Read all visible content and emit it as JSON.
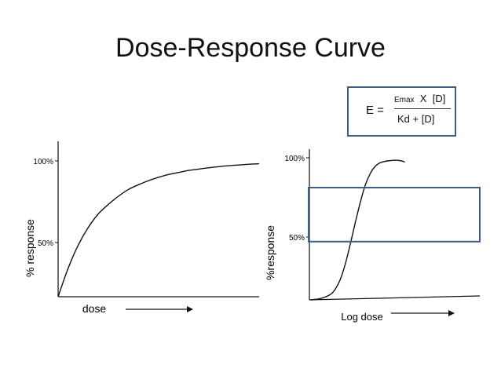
{
  "title": "Dose-Response Curve",
  "formula": {
    "lhs": "E =",
    "emax": "Emax",
    "times": "X",
    "dose": "[D]",
    "denominator": "Kd + [D]"
  },
  "colors": {
    "curve": "#111111",
    "axis": "#111111",
    "highlight": "#3a5f8a"
  },
  "chart_data": [
    {
      "type": "line",
      "series": [
        {
          "x": [
            0,
            0.05,
            0.1,
            0.15,
            0.2,
            0.25,
            0.3,
            0.35,
            0.4,
            0.45,
            0.5,
            0.55,
            0.6,
            0.65,
            0.7,
            0.75,
            0.8,
            0.85,
            0.9,
            0.95,
            1.0
          ],
          "y": [
            0,
            21,
            38,
            51,
            61,
            68,
            74,
            79,
            82.5,
            85.5,
            88,
            90,
            91.5,
            93,
            94,
            95,
            95.8,
            96.5,
            97,
            97.6,
            98
          ]
        }
      ],
      "xlabel": "dose",
      "ylabel": "% response",
      "yticks": [
        {
          "label": "50%",
          "value": 50
        },
        {
          "label": "100%",
          "value": 100
        }
      ],
      "xlim": [
        0,
        1
      ],
      "ylim": [
        0,
        100
      ]
    },
    {
      "type": "line",
      "series": [
        {
          "x": [
            0,
            0.1,
            0.2,
            0.25,
            0.3,
            0.35,
            0.4,
            0.45,
            0.5,
            0.55,
            0.6,
            0.65,
            0.7,
            0.75,
            0.8,
            0.85,
            0.9,
            0.95
          ],
          "y": [
            0,
            1,
            4,
            8,
            15,
            26,
            40,
            55,
            69,
            81,
            89,
            94,
            96.5,
            97.5,
            98,
            98.3,
            98,
            97
          ]
        }
      ],
      "xlabel": "Log dose",
      "ylabel": "%response",
      "yticks": [
        {
          "label": "50%",
          "value": 50
        },
        {
          "label": "100%",
          "value": 100
        }
      ],
      "highlight_band": [
        41,
        79
      ],
      "xlim": [
        0,
        1
      ],
      "ylim": [
        0,
        100
      ]
    }
  ]
}
